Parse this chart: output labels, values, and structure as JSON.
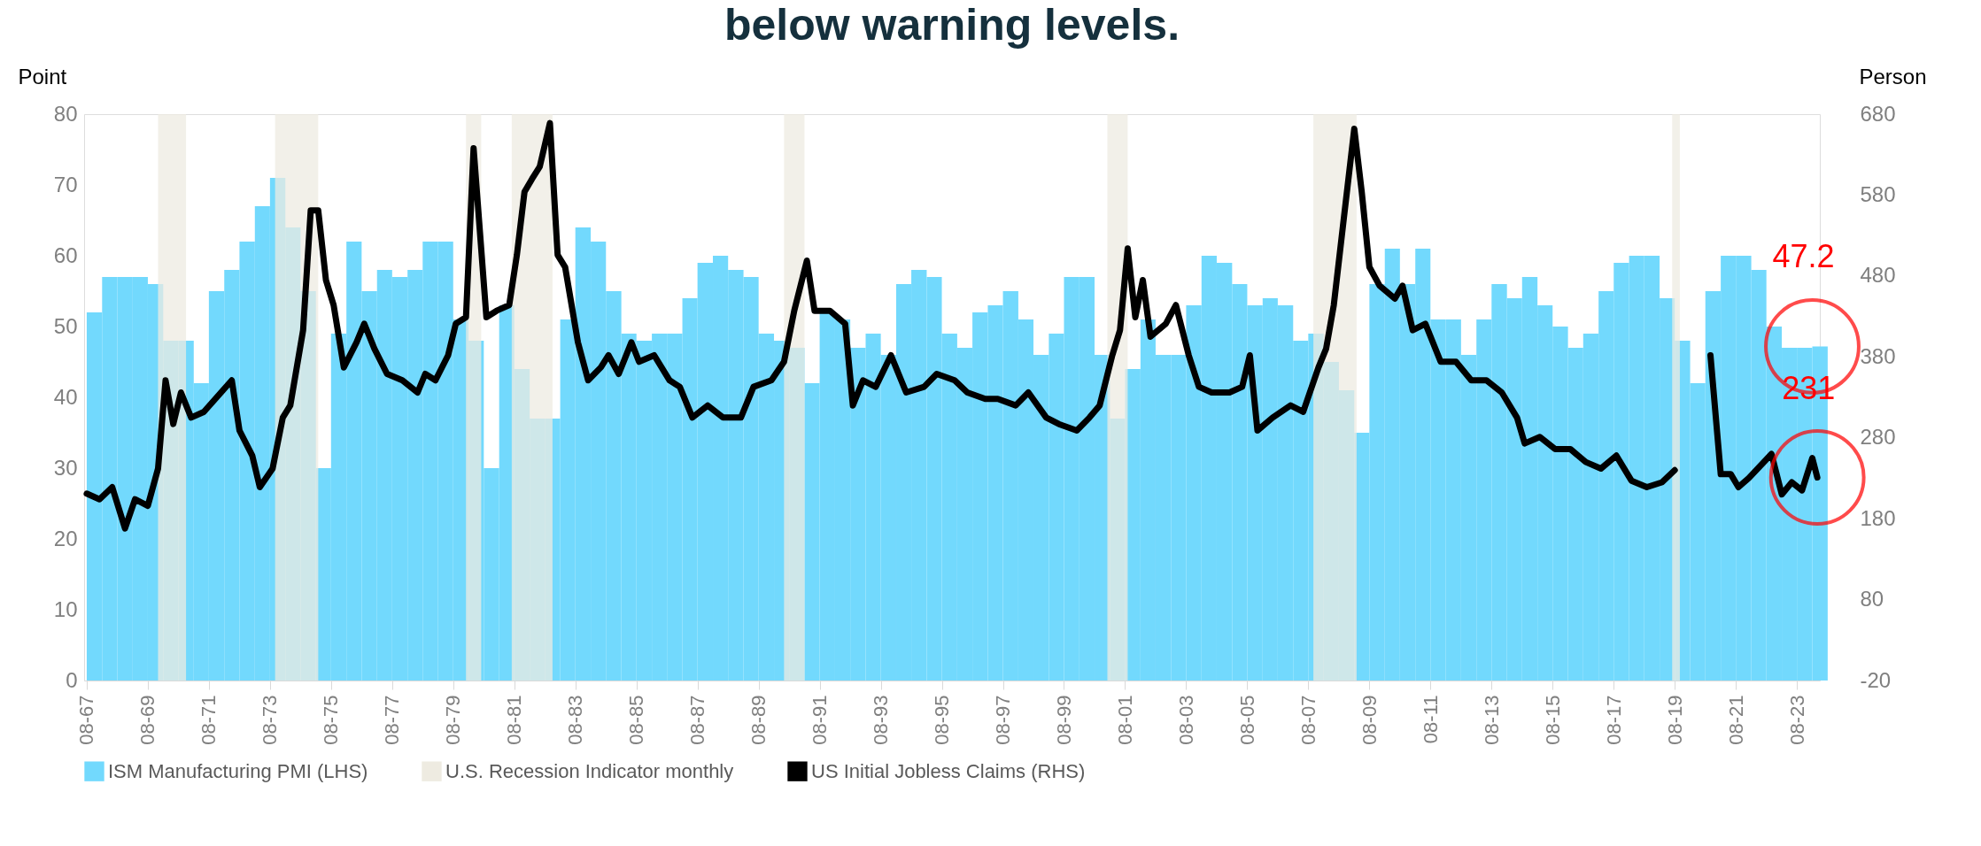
{
  "chart_data": {
    "type": "bar",
    "title": "below warning levels.",
    "ylabel": "Point",
    "y2label": "Person",
    "ylim": [
      0,
      80
    ],
    "yticks": [
      0,
      10,
      20,
      30,
      40,
      50,
      60,
      70,
      80
    ],
    "y2lim": [
      -20,
      680
    ],
    "y2ticks": [
      -20,
      80,
      180,
      280,
      380,
      480,
      580,
      680
    ],
    "xlim": [
      "1967-07",
      "2024-05"
    ],
    "xticks": [
      {
        "value": "1967-08",
        "label": "08-67"
      },
      {
        "value": "1969-08",
        "label": "08-69"
      },
      {
        "value": "1971-08",
        "label": "08-71"
      },
      {
        "value": "1973-08",
        "label": "08-73"
      },
      {
        "value": "1975-08",
        "label": "08-75"
      },
      {
        "value": "1977-08",
        "label": "08-77"
      },
      {
        "value": "1979-08",
        "label": "08-79"
      },
      {
        "value": "1981-08",
        "label": "08-81"
      },
      {
        "value": "1983-08",
        "label": "08-83"
      },
      {
        "value": "1985-08",
        "label": "08-85"
      },
      {
        "value": "1987-08",
        "label": "08-87"
      },
      {
        "value": "1989-08",
        "label": "08-89"
      },
      {
        "value": "1991-08",
        "label": "08-91"
      },
      {
        "value": "1993-08",
        "label": "08-93"
      },
      {
        "value": "1995-08",
        "label": "08-95"
      },
      {
        "value": "1997-08",
        "label": "08-97"
      },
      {
        "value": "1999-08",
        "label": "08-99"
      },
      {
        "value": "2001-08",
        "label": "08-01"
      },
      {
        "value": "2003-08",
        "label": "08-03"
      },
      {
        "value": "2005-08",
        "label": "08-05"
      },
      {
        "value": "2007-08",
        "label": "08-07"
      },
      {
        "value": "2009-08",
        "label": "08-09"
      },
      {
        "value": "2011-08",
        "label": "08-11"
      },
      {
        "value": "2013-08",
        "label": "08-13"
      },
      {
        "value": "2015-08",
        "label": "08-15"
      },
      {
        "value": "2017-08",
        "label": "08-17"
      },
      {
        "value": "2019-08",
        "label": "08-19"
      },
      {
        "value": "2021-08",
        "label": "08-21"
      },
      {
        "value": "2023-08",
        "label": "08-23"
      }
    ],
    "series": [
      {
        "name": "ISM Manufacturing PMI (LHS)",
        "color": "#72d9fd",
        "x": [
          "1967-08",
          "1968-02",
          "1968-08",
          "1969-02",
          "1969-08",
          "1970-02",
          "1970-08",
          "1971-02",
          "1971-08",
          "1972-02",
          "1972-08",
          "1973-02",
          "1973-08",
          "1974-02",
          "1974-08",
          "1975-02",
          "1975-08",
          "1976-02",
          "1976-08",
          "1977-02",
          "1977-08",
          "1978-02",
          "1978-08",
          "1979-02",
          "1979-08",
          "1980-02",
          "1980-08",
          "1981-02",
          "1981-08",
          "1982-02",
          "1982-08",
          "1983-02",
          "1983-08",
          "1984-02",
          "1984-08",
          "1985-02",
          "1985-08",
          "1986-02",
          "1986-08",
          "1987-02",
          "1987-08",
          "1988-02",
          "1988-08",
          "1989-02",
          "1989-08",
          "1990-02",
          "1990-08",
          "1991-02",
          "1991-08",
          "1992-02",
          "1992-08",
          "1993-02",
          "1993-08",
          "1994-02",
          "1994-08",
          "1995-02",
          "1995-08",
          "1996-02",
          "1996-08",
          "1997-02",
          "1997-08",
          "1998-02",
          "1998-08",
          "1999-02",
          "1999-08",
          "2000-02",
          "2000-08",
          "2001-02",
          "2001-08",
          "2002-02",
          "2002-08",
          "2003-02",
          "2003-08",
          "2004-02",
          "2004-08",
          "2005-02",
          "2005-08",
          "2006-02",
          "2006-08",
          "2007-02",
          "2007-08",
          "2008-02",
          "2008-08",
          "2009-02",
          "2009-08",
          "2010-02",
          "2010-08",
          "2011-02",
          "2011-08",
          "2012-02",
          "2012-08",
          "2013-02",
          "2013-08",
          "2014-02",
          "2014-08",
          "2015-02",
          "2015-08",
          "2016-02",
          "2016-08",
          "2017-02",
          "2017-08",
          "2018-02",
          "2018-08",
          "2019-02",
          "2019-08",
          "2020-02",
          "2020-08",
          "2021-02",
          "2021-08",
          "2022-02",
          "2022-08",
          "2023-02",
          "2023-08",
          "2024-02"
        ],
        "values": [
          52,
          57,
          57,
          57,
          56,
          48,
          48,
          42,
          55,
          58,
          62,
          67,
          71,
          64,
          55,
          30,
          49,
          62,
          55,
          58,
          57,
          58,
          62,
          62,
          51,
          48,
          30,
          53,
          44,
          37,
          37,
          51,
          64,
          62,
          55,
          49,
          48,
          49,
          49,
          54,
          59,
          60,
          58,
          57,
          49,
          48,
          47,
          42,
          52,
          51,
          47,
          49,
          46,
          56,
          58,
          57,
          49,
          47,
          52,
          53,
          55,
          51,
          46,
          49,
          57,
          57,
          46,
          37,
          44,
          51,
          46,
          46,
          53,
          60,
          59,
          56,
          53,
          54,
          53,
          48,
          49,
          45,
          41,
          35,
          56,
          61,
          56,
          61,
          51,
          51,
          46,
          51,
          56,
          54,
          57,
          53,
          50,
          47,
          49,
          55,
          59,
          60,
          60,
          54,
          48,
          42,
          55,
          60,
          60,
          58,
          50,
          47,
          47,
          47.2
        ]
      },
      {
        "name": "US Initial Jobless Claims (RHS)",
        "type": "line",
        "axis": "y2",
        "color": "#000000",
        "x": [
          "1967-08",
          "1968-01",
          "1968-06",
          "1968-11",
          "1969-03",
          "1969-08",
          "1969-12",
          "1970-03",
          "1970-06",
          "1970-09",
          "1971-01",
          "1971-06",
          "1972-05",
          "1972-08",
          "1973-01",
          "1973-04",
          "1973-09",
          "1974-01",
          "1974-04",
          "1974-09",
          "1974-12",
          "1975-03",
          "1975-06",
          "1975-09",
          "1976-01",
          "1976-06",
          "1976-09",
          "1977-01",
          "1977-06",
          "1977-12",
          "1978-06",
          "1978-09",
          "1979-01",
          "1979-06",
          "1979-09",
          "1980-01",
          "1980-04",
          "1980-09",
          "1981-01",
          "1981-06",
          "1981-09",
          "1981-12",
          "1982-03",
          "1982-06",
          "1982-10",
          "1983-01",
          "1983-04",
          "1983-09",
          "1984-01",
          "1984-06",
          "1984-09",
          "1985-01",
          "1985-06",
          "1985-09",
          "1986-03",
          "1986-09",
          "1987-01",
          "1987-06",
          "1987-12",
          "1988-06",
          "1989-01",
          "1989-06",
          "1990-01",
          "1990-06",
          "1990-10",
          "1991-03",
          "1991-06",
          "1991-12",
          "1992-06",
          "1992-09",
          "1993-01",
          "1993-06",
          "1993-12",
          "1994-06",
          "1995-01",
          "1995-06",
          "1996-01",
          "1996-06",
          "1997-01",
          "1997-06",
          "1998-01",
          "1998-06",
          "1999-01",
          "1999-06",
          "2000-01",
          "2000-06",
          "2000-10",
          "2001-03",
          "2001-06",
          "2001-09",
          "2001-12",
          "2002-03",
          "2002-06",
          "2002-12",
          "2003-04",
          "2003-09",
          "2004-01",
          "2004-06",
          "2005-01",
          "2005-06",
          "2005-09",
          "2005-12",
          "2006-06",
          "2007-01",
          "2007-06",
          "2007-12",
          "2008-03",
          "2008-06",
          "2008-10",
          "2009-02",
          "2009-05",
          "2009-08",
          "2009-12",
          "2010-06",
          "2010-09",
          "2011-01",
          "2011-06",
          "2011-12",
          "2012-06",
          "2012-12",
          "2013-06",
          "2013-12",
          "2014-06",
          "2014-09",
          "2015-03",
          "2015-09",
          "2016-03",
          "2016-09",
          "2017-03",
          "2017-09",
          "2018-03",
          "2018-09",
          "2019-03",
          "2019-08",
          "2019-10",
          "2020-08",
          "2020-10",
          "2021-02",
          "2021-06",
          "2021-09",
          "2022-01",
          "2022-10",
          "2023-02",
          "2023-06",
          "2023-10",
          "2024-02",
          "2024-04"
        ],
        "values": [
          211,
          204,
          219,
          168,
          204,
          196,
          242,
          351,
          297,
          336,
          305,
          312,
          351,
          289,
          258,
          219,
          242,
          305,
          320,
          413,
          561,
          561,
          475,
          444,
          367,
          398,
          421,
          390,
          359,
          351,
          336,
          359,
          351,
          382,
          421,
          429,
          638,
          429,
          437,
          444,
          506,
          584,
          600,
          615,
          669,
          506,
          491,
          398,
          351,
          367,
          382,
          359,
          398,
          374,
          382,
          351,
          343,
          305,
          320,
          305,
          305,
          343,
          351,
          374,
          437,
          499,
          437,
          437,
          421,
          320,
          351,
          343,
          382,
          336,
          343,
          359,
          351,
          336,
          328,
          328,
          320,
          336,
          305,
          297,
          289,
          305,
          320,
          382,
          413,
          514,
          429,
          475,
          405,
          421,
          444,
          382,
          343,
          336,
          336,
          343,
          382,
          289,
          305,
          320,
          312,
          367,
          390,
          444,
          553,
          662,
          584,
          491,
          468,
          452,
          468,
          413,
          421,
          374,
          374,
          351,
          351,
          336,
          305,
          273,
          281,
          266,
          266,
          250,
          242,
          258,
          227,
          219,
          225,
          240,
          null,
          null,
          382,
          235,
          235,
          219,
          230,
          260,
          210,
          225,
          215,
          255,
          231
        ]
      }
    ],
    "bands": [
      {
        "axis": "x",
        "from": "1969-12",
        "to": "1970-11",
        "label": "U.S. Recession Indicator monthly",
        "color": "#eeebe1"
      },
      {
        "axis": "x",
        "from": "1973-10",
        "to": "1975-03",
        "color": "#eeebe1"
      },
      {
        "axis": "x",
        "from": "1980-01",
        "to": "1980-07",
        "color": "#eeebe1"
      },
      {
        "axis": "x",
        "from": "1981-07",
        "to": "1982-11",
        "color": "#eeebe1"
      },
      {
        "axis": "x",
        "from": "1990-06",
        "to": "1991-02",
        "color": "#eeebe1"
      },
      {
        "axis": "x",
        "from": "2001-01",
        "to": "2001-09",
        "color": "#eeebe1"
      },
      {
        "axis": "x",
        "from": "2007-10",
        "to": "2009-03",
        "color": "#eeebe1"
      },
      {
        "axis": "x",
        "from": "2019-07",
        "to": "2019-10",
        "color": "#eeebe1"
      }
    ],
    "annotations": [
      "47.2",
      "231"
    ],
    "legend": "bottom",
    "grid": false,
    "marker": "none",
    "line_style": "solid"
  }
}
